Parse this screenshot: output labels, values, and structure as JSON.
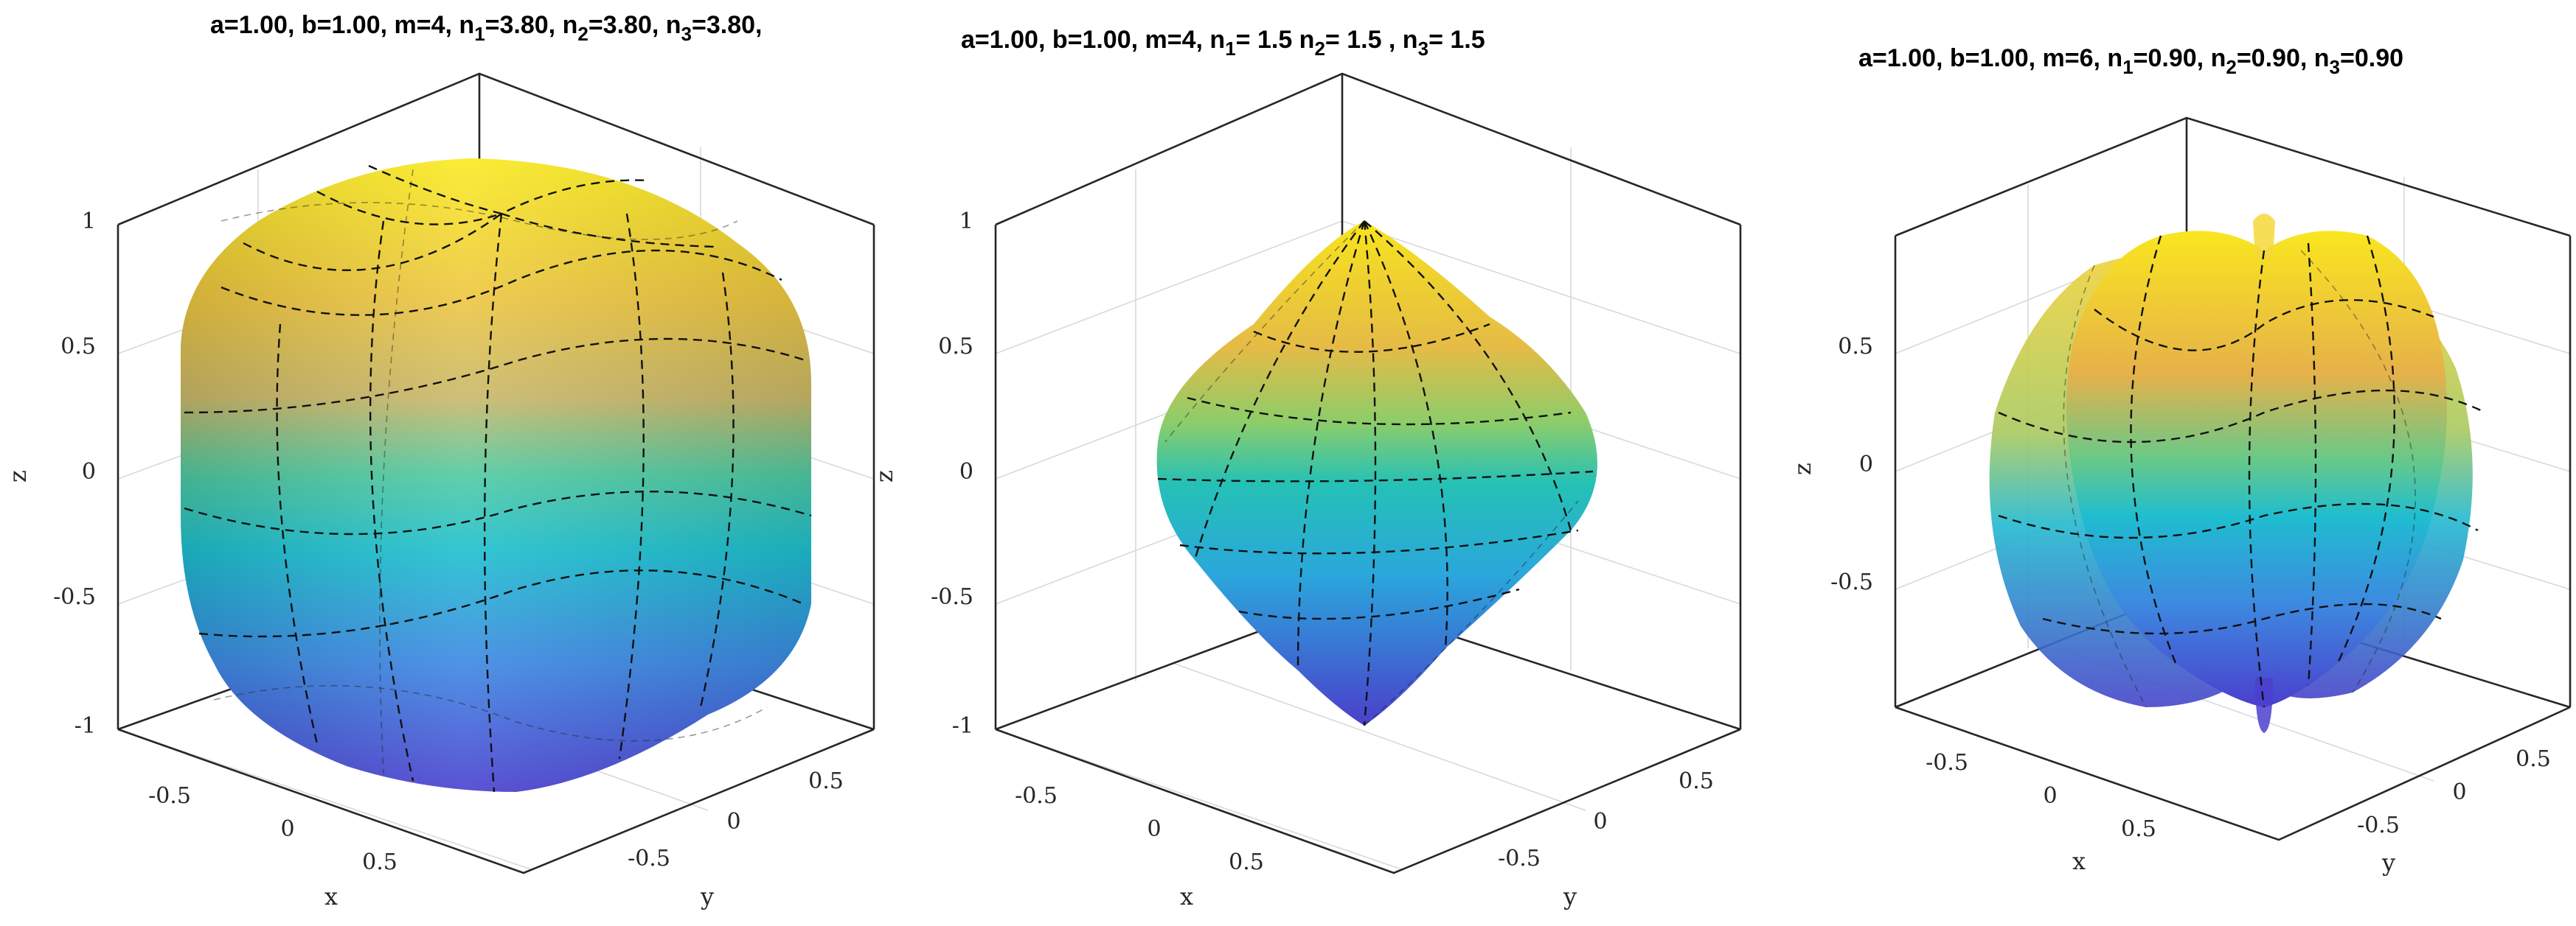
{
  "chart_data": [
    {
      "type": "surface",
      "title": {
        "pre": "a=1.00, b=1.00, m=4, n",
        "s1": "1",
        "v1": "=3.80, n",
        "s2": "2",
        "v2": "=3.80, n",
        "s3": "3",
        "v3": "=3.80,"
      },
      "params": {
        "a": 1.0,
        "b": 1.0,
        "m": 4,
        "n1": 3.8,
        "n2": 3.8,
        "n3": 3.8
      },
      "xlabel": "x",
      "ylabel": "y",
      "zlabel": "z",
      "zticks": [
        "1",
        "0.5",
        "0",
        "-0.5",
        "-1"
      ],
      "xticks": [
        "-0.5",
        "0",
        "0.5"
      ],
      "yticks": [
        "0.5",
        "0",
        "-0.5"
      ],
      "zlim": [
        -1,
        1
      ],
      "grid": true,
      "colormap": "parula"
    },
    {
      "type": "surface",
      "title": {
        "pre": "a=1.00, b=1.00, m=4, n",
        "s1": "1",
        "v1": "= 1.5    n",
        "s2": "2",
        "v2": "= 1.5  , n",
        "s3": "3",
        "v3": "= 1.5"
      },
      "params": {
        "a": 1.0,
        "b": 1.0,
        "m": 4,
        "n1": 1.5,
        "n2": 1.5,
        "n3": 1.5
      },
      "xlabel": "x",
      "ylabel": "y",
      "zlabel": "z",
      "zticks": [
        "1",
        "0.5",
        "0",
        "-0.5",
        "-1"
      ],
      "xticks": [
        "-0.5",
        "0",
        "0.5"
      ],
      "yticks": [
        "0.5",
        "0",
        "-0.5"
      ],
      "zlim": [
        -1,
        1
      ],
      "grid": true,
      "colormap": "parula"
    },
    {
      "type": "surface",
      "title": {
        "pre": "a=1.00, b=1.00, m=6, n",
        "s1": "1",
        "v1": "=0.90, n",
        "s2": "2",
        "v2": "=0.90, n",
        "s3": "3",
        "v3": "=0.90"
      },
      "params": {
        "a": 1.0,
        "b": 1.0,
        "m": 6,
        "n1": 0.9,
        "n2": 0.9,
        "n3": 0.9
      },
      "xlabel": "x",
      "ylabel": "y",
      "zlabel": "z",
      "zticks": [
        "0.5",
        "0",
        "-0.5"
      ],
      "xticks": [
        "-0.5",
        "0",
        "0.5"
      ],
      "yticks": [
        "0.5",
        "0",
        "-0.5"
      ],
      "grid": true,
      "colormap": "parula"
    }
  ],
  "colors": {
    "top": "#f9e721",
    "upper": "#e9b04a",
    "mid": "#9fc85b",
    "cyan": "#1fc0c8",
    "lower": "#3a93df",
    "bottom": "#4b4acd"
  }
}
